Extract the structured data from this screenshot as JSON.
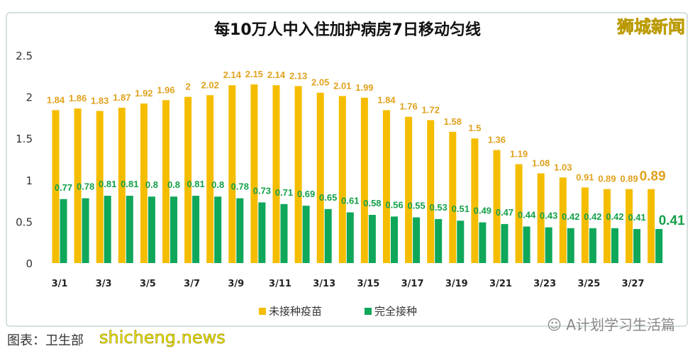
{
  "chart_data": {
    "type": "bar",
    "title": "每10万人中入住加护病房7日移动匀线",
    "categories": [
      "3/1",
      "3/2",
      "3/3",
      "3/4",
      "3/5",
      "3/6",
      "3/7",
      "3/8",
      "3/9",
      "3/10",
      "3/11",
      "3/12",
      "3/13",
      "3/14",
      "3/15",
      "3/16",
      "3/17",
      "3/18",
      "3/19",
      "3/20",
      "3/21",
      "3/22",
      "3/23",
      "3/24",
      "3/25",
      "3/26",
      "3/27",
      "3/28"
    ],
    "tick_labels": [
      "3/1",
      "3/3",
      "3/5",
      "3/7",
      "3/9",
      "3/11",
      "3/13",
      "3/15",
      "3/17",
      "3/19",
      "3/21",
      "3/23",
      "3/25",
      "3/27"
    ],
    "y_ticks": [
      "0",
      "0.5",
      "1",
      "1.5",
      "2",
      "2.5"
    ],
    "ylim": [
      0,
      2.5
    ],
    "grid": false,
    "legend": "bottom",
    "series": [
      {
        "name": "未接种疫苗",
        "color": "#f5bd00",
        "label_color": "#e0a21e",
        "values": [
          1.84,
          1.86,
          1.83,
          1.87,
          1.92,
          1.96,
          2,
          2.02,
          2.14,
          2.15,
          2.14,
          2.13,
          2.05,
          2.01,
          1.99,
          1.84,
          1.76,
          1.72,
          1.58,
          1.5,
          1.36,
          1.19,
          1.08,
          1.03,
          0.91,
          0.89,
          0.89,
          0.89
        ]
      },
      {
        "name": "完全接种",
        "color": "#0fa75a",
        "label_color": "#14a04a",
        "values": [
          0.77,
          0.78,
          0.81,
          0.81,
          0.8,
          0.8,
          0.81,
          0.8,
          0.78,
          0.73,
          0.71,
          0.69,
          0.65,
          0.61,
          0.58,
          0.56,
          0.55,
          0.53,
          0.51,
          0.49,
          0.47,
          0.44,
          0.43,
          0.42,
          0.42,
          0.42,
          0.41,
          0.41
        ]
      }
    ]
  },
  "brand": "狮城新闻",
  "wechat": "A计划学习生活篇",
  "source": "图表：卫生部",
  "watermark": "shicheng.news"
}
